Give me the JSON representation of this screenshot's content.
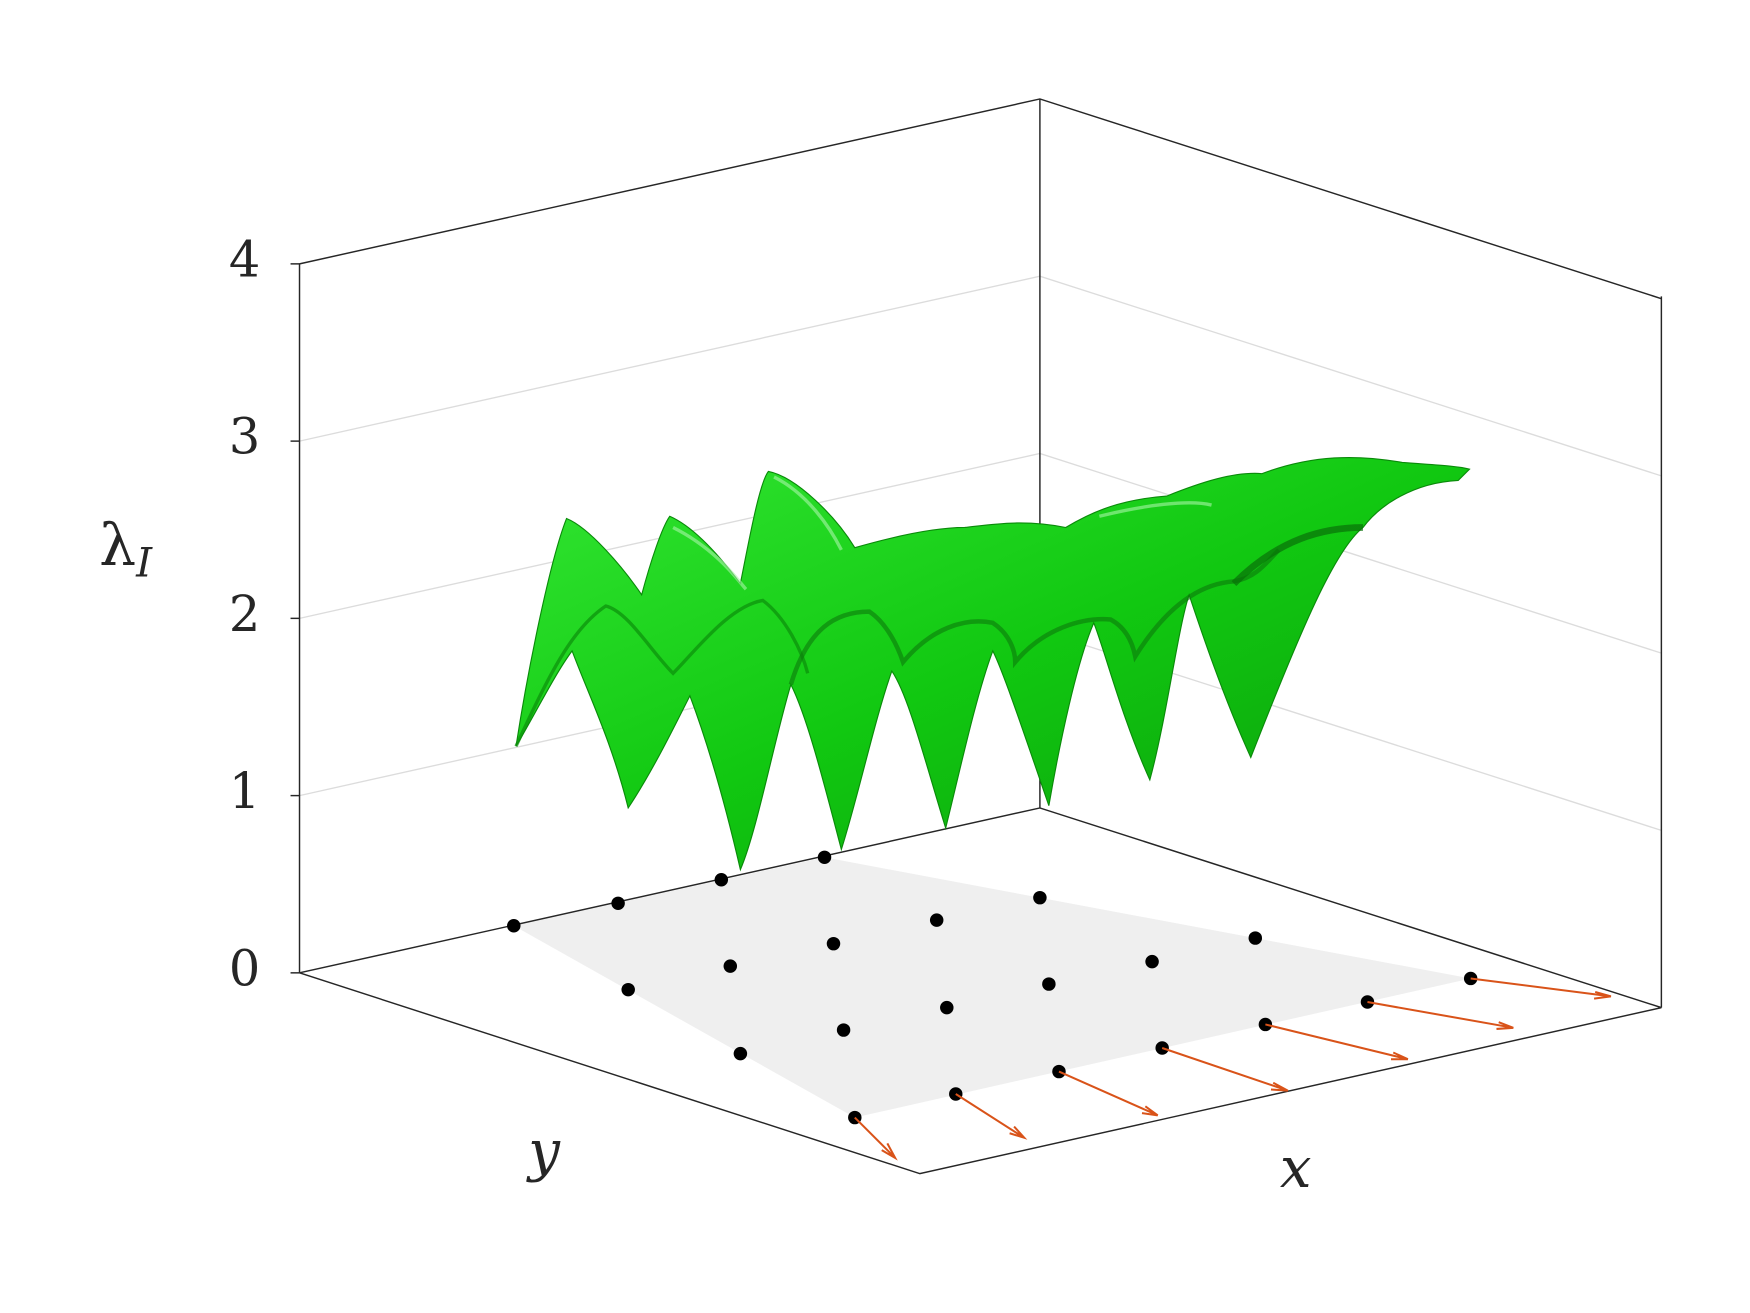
{
  "chart_data": {
    "type": "surface",
    "zlabel": "λ",
    "zlabel_subscript": "I",
    "xlabel": "x",
    "ylabel": "y",
    "zlim": [
      0,
      4
    ],
    "zticks": [
      0,
      1,
      2,
      3,
      4
    ],
    "grid": true,
    "color": "#00cc00"
  }
}
